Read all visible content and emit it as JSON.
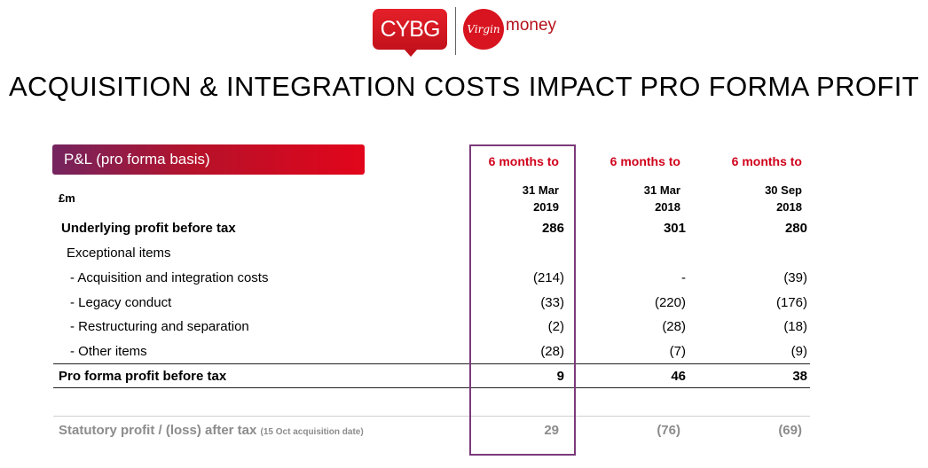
{
  "logos": {
    "cybg": "CYBG",
    "virgin": "Virgin",
    "money": "money"
  },
  "title": "ACQUISITION & INTEGRATION COSTS IMPACT PRO FORMA PROFIT",
  "section": "P&L (pro forma basis)",
  "unit": "£m",
  "columns": [
    {
      "head": "6 months to",
      "date1": "31 Mar",
      "date2": "2019"
    },
    {
      "head": "6 months to",
      "date1": "31 Mar",
      "date2": "2018"
    },
    {
      "head": "6 months to",
      "date1": "30 Sep",
      "date2": "2018"
    }
  ],
  "rows": [
    {
      "label": "Underlying profit before tax",
      "values": [
        "286",
        "301",
        "280"
      ]
    },
    {
      "label": "Exceptional items",
      "values": [
        "",
        "",
        ""
      ]
    },
    {
      "label": "- Acquisition and integration costs",
      "values": [
        "(214)",
        "-",
        "(39)"
      ]
    },
    {
      "label": "- Legacy conduct",
      "values": [
        "(33)",
        "(220)",
        "(176)"
      ]
    },
    {
      "label": "- Restructuring and separation",
      "values": [
        "(2)",
        "(28)",
        "(18)"
      ]
    },
    {
      "label": "- Other items",
      "values": [
        "(28)",
        "(7)",
        "(9)"
      ]
    },
    {
      "label": "Pro forma profit before tax",
      "values": [
        "9",
        "46",
        "38"
      ]
    }
  ],
  "statutory": {
    "label": "Statutory profit / (loss) after tax",
    "note": "(15 Oct acquisition date)",
    "values": [
      "29",
      "(76)",
      "(69)"
    ]
  }
}
